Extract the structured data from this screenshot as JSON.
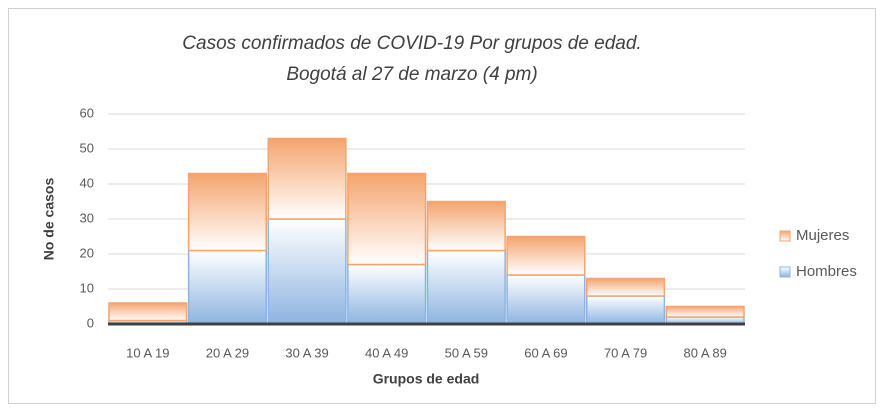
{
  "chart_data": {
    "type": "stacked_bar",
    "title": "Casos confirmados de COVID-19 Por grupos de edad.",
    "subtitle": "Bogotá al 27 de marzo (4 pm)",
    "x_label": "Grupos de edad",
    "y_label": "No de casos",
    "categories": [
      "10 A 19",
      "20 A 29",
      "30 A 39",
      "40 A 49",
      "50 A 59",
      "60 A 69",
      "70 A 79",
      "80 A 89"
    ],
    "series": [
      {
        "name": "Hombres",
        "color": "#8db4e2",
        "values": [
          1,
          21,
          30,
          17,
          21,
          14,
          8,
          2
        ]
      },
      {
        "name": "Mujeres",
        "color": "#f4a46e",
        "values": [
          5,
          22,
          23,
          26,
          14,
          11,
          5,
          3
        ]
      }
    ],
    "ylim": [
      0,
      60
    ],
    "yticks": [
      0,
      10,
      20,
      30,
      40,
      50,
      60
    ],
    "grid": true,
    "legend": "right"
  }
}
